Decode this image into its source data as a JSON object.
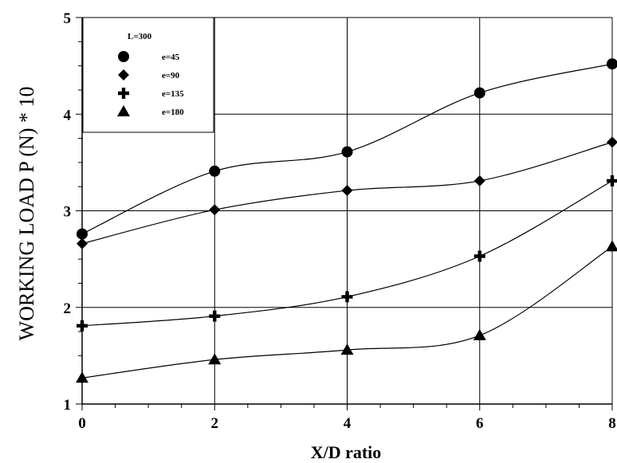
{
  "chart_data": {
    "type": "line",
    "xlabel": "X/D ratio",
    "ylabel": "WORKING LOAD P (N) * 10",
    "xlim": [
      0,
      8
    ],
    "ylim": [
      1,
      5
    ],
    "x_ticks": [
      "0",
      "2",
      "4",
      "6",
      "8"
    ],
    "y_ticks": [
      "1",
      "2",
      "3",
      "4",
      "5"
    ],
    "grid": true,
    "legend": {
      "title": "L=300",
      "placement": "top-left"
    },
    "x": [
      0,
      2,
      4,
      6,
      8
    ],
    "series": [
      {
        "name": "e=45",
        "marker": "circle",
        "values": [
          2.76,
          3.41,
          3.61,
          4.22,
          4.52
        ]
      },
      {
        "name": "e=90",
        "marker": "diamond",
        "values": [
          2.66,
          3.01,
          3.21,
          3.31,
          3.71
        ]
      },
      {
        "name": "e=135",
        "marker": "plus",
        "values": [
          1.81,
          1.91,
          2.11,
          2.53,
          3.31
        ]
      },
      {
        "name": "e=180",
        "marker": "triangle",
        "values": [
          1.27,
          1.46,
          1.56,
          1.71,
          2.63
        ]
      }
    ]
  }
}
